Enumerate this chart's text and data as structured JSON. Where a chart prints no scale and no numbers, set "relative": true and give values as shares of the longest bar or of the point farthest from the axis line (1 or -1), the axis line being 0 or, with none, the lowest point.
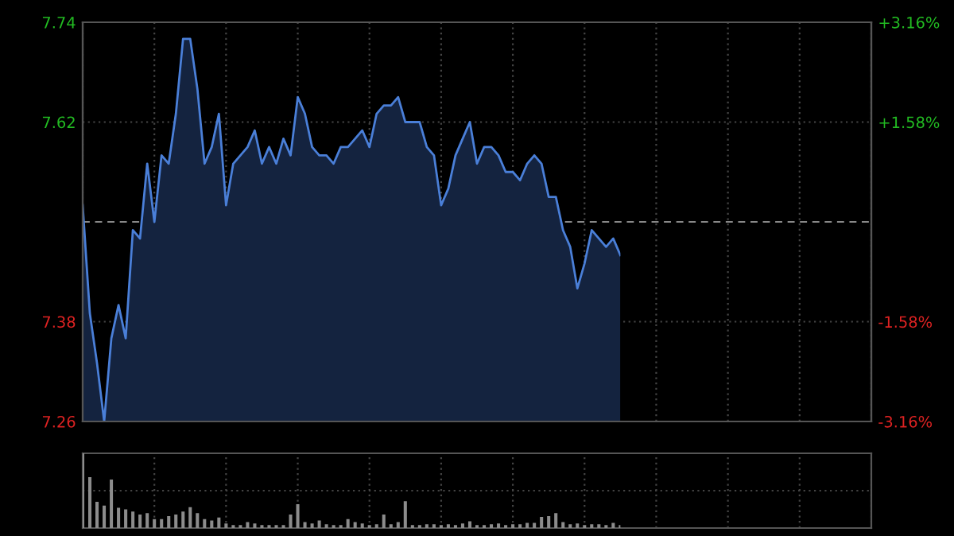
{
  "chart_data": [
    {
      "type": "area",
      "categories": [
        null,
        null,
        null,
        null,
        null,
        null,
        null,
        null,
        null,
        null,
        null,
        null,
        null,
        null,
        null,
        null,
        null,
        null,
        null,
        null,
        null,
        null,
        null,
        null,
        null,
        null,
        null,
        null,
        null,
        null,
        null,
        null,
        null,
        null,
        null,
        null,
        null,
        null,
        null,
        null,
        null,
        null,
        null,
        null,
        null,
        null,
        null,
        null,
        null,
        null,
        null,
        null,
        null,
        null,
        null,
        null,
        null,
        null,
        null,
        null,
        null,
        null,
        null,
        null,
        null,
        null,
        null,
        null,
        null,
        null,
        null,
        null,
        null,
        null,
        null,
        null
      ],
      "series": [
        {
          "color": "#4a7fd8",
          "values": [
            7.52,
            7.39,
            7.33,
            7.26,
            7.36,
            7.4,
            7.36,
            7.49,
            7.48,
            7.57,
            7.5,
            7.58,
            7.57,
            7.63,
            7.72,
            7.72,
            7.66,
            7.57,
            7.59,
            7.63,
            7.52,
            7.57,
            7.58,
            7.59,
            7.61,
            7.57,
            7.59,
            7.57,
            7.6,
            7.58,
            7.65,
            7.63,
            7.59,
            7.58,
            7.58,
            7.57,
            7.59,
            7.59,
            7.6,
            7.61,
            7.59,
            7.63,
            7.64,
            7.64,
            7.65,
            7.62,
            7.62,
            7.62,
            7.59,
            7.58,
            7.52,
            7.54,
            7.58,
            7.6,
            7.62,
            7.57,
            7.59,
            7.59,
            7.58,
            7.56,
            7.56,
            7.55,
            7.57,
            7.58,
            7.57,
            7.53,
            7.53,
            7.49,
            7.47,
            7.42,
            7.45,
            7.49,
            7.48,
            7.47,
            7.48,
            7.46
          ]
        }
      ],
      "ylim": [
        7.26,
        7.74
      ],
      "yticks": [
        7.26,
        7.38,
        7.62,
        7.74
      ],
      "y2lim": [
        -3.16,
        3.16
      ],
      "y2ticks": [
        {
          "value": -3.16,
          "label": "-3.16%"
        },
        {
          "value": -1.58,
          "label": "-1.58%"
        },
        {
          "value": 1.58,
          "label": "+1.58%"
        },
        {
          "value": 3.16,
          "label": "+3.16%"
        }
      ],
      "ref_lines": [
        {
          "axis": "y",
          "value": 7.5,
          "line_style": "dashed",
          "color": "#888888"
        }
      ],
      "grid": true
    },
    {
      "type": "bar",
      "relative": true,
      "color": "#8c8c8c",
      "grid": true,
      "categories": [
        null,
        null,
        null,
        null,
        null,
        null,
        null,
        null,
        null,
        null,
        null,
        null,
        null,
        null,
        null,
        null,
        null,
        null,
        null,
        null,
        null,
        null,
        null,
        null,
        null,
        null,
        null,
        null,
        null,
        null,
        null,
        null,
        null,
        null,
        null,
        null,
        null,
        null,
        null,
        null,
        null,
        null,
        null,
        null,
        null,
        null,
        null,
        null,
        null,
        null,
        null,
        null,
        null,
        null,
        null,
        null,
        null,
        null,
        null,
        null,
        null,
        null,
        null,
        null,
        null,
        null,
        null,
        null,
        null,
        null,
        null,
        null,
        null,
        null,
        null,
        null
      ],
      "values": [
        1.0,
        0.68,
        0.35,
        0.3,
        0.65,
        0.27,
        0.25,
        0.22,
        0.18,
        0.2,
        0.12,
        0.12,
        0.16,
        0.18,
        0.22,
        0.28,
        0.2,
        0.12,
        0.1,
        0.14,
        0.06,
        0.04,
        0.04,
        0.08,
        0.06,
        0.04,
        0.04,
        0.04,
        0.04,
        0.18,
        0.32,
        0.08,
        0.06,
        0.1,
        0.05,
        0.04,
        0.04,
        0.12,
        0.08,
        0.06,
        0.04,
        0.05,
        0.18,
        0.05,
        0.08,
        0.36,
        0.04,
        0.04,
        0.05,
        0.05,
        0.04,
        0.05,
        0.04,
        0.06,
        0.09,
        0.04,
        0.04,
        0.05,
        0.06,
        0.04,
        0.05,
        0.05,
        0.07,
        0.07,
        0.15,
        0.16,
        0.2,
        0.08,
        0.05,
        0.06,
        0.04,
        0.05,
        0.05,
        0.04,
        0.07,
        0.04
      ]
    }
  ]
}
